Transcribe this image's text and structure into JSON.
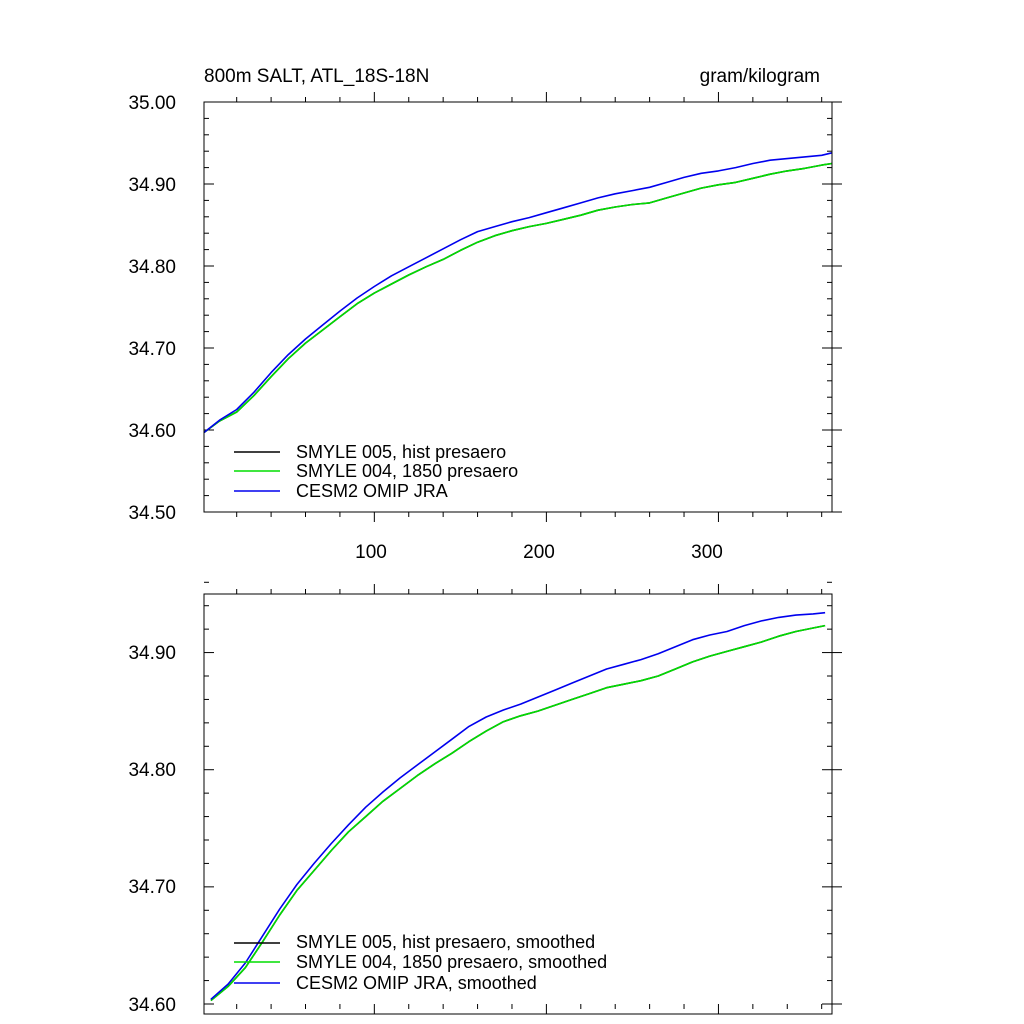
{
  "chart_data": [
    {
      "type": "line",
      "title": "800m SALT, ATL_18S-18N",
      "units": "gram/kilogram",
      "xlim": [
        1,
        366
      ],
      "ylim": [
        34.5,
        35.0
      ],
      "x_ticks": [
        100,
        200,
        300
      ],
      "x_tick_labels": [
        "100",
        "200",
        "300"
      ],
      "y_ticks": [
        34.5,
        34.6,
        34.7,
        34.8,
        34.9,
        35.0
      ],
      "y_tick_labels": [
        "34.50",
        "34.60",
        "34.70",
        "34.80",
        "34.90",
        "35.00"
      ],
      "legend_position": "bottom-left",
      "series": [
        {
          "name": "SMYLE 005, hist presaero",
          "color": "#000000",
          "x": [
            1,
            10,
            20,
            30,
            40,
            50,
            60,
            70,
            80,
            90,
            100,
            110,
            120,
            130,
            140,
            150,
            160,
            170,
            180,
            190,
            200,
            210,
            220,
            230,
            240,
            250,
            260,
            270,
            280,
            290,
            300,
            310,
            320,
            330,
            340,
            350,
            360,
            366
          ],
          "y": [
            34.597,
            34.611,
            34.622,
            34.642,
            34.665,
            34.687,
            34.706,
            34.722,
            34.738,
            34.754,
            34.767,
            34.778,
            34.789,
            34.799,
            34.808,
            34.819,
            34.829,
            34.837,
            34.843,
            34.848,
            34.852,
            34.857,
            34.862,
            34.868,
            34.872,
            34.875,
            34.877,
            34.883,
            34.889,
            34.895,
            34.899,
            34.902,
            34.907,
            34.912,
            34.916,
            34.919,
            34.923,
            34.925
          ]
        },
        {
          "name": "SMYLE 004, 1850 presaero",
          "color": "#00dd00",
          "x": [
            1,
            10,
            20,
            30,
            40,
            50,
            60,
            70,
            80,
            90,
            100,
            110,
            120,
            130,
            140,
            150,
            160,
            170,
            180,
            190,
            200,
            210,
            220,
            230,
            240,
            250,
            260,
            270,
            280,
            290,
            300,
            310,
            320,
            330,
            340,
            350,
            360,
            366
          ],
          "y": [
            34.597,
            34.611,
            34.622,
            34.642,
            34.665,
            34.687,
            34.706,
            34.722,
            34.738,
            34.754,
            34.767,
            34.778,
            34.789,
            34.799,
            34.808,
            34.819,
            34.829,
            34.837,
            34.843,
            34.848,
            34.852,
            34.857,
            34.862,
            34.868,
            34.872,
            34.875,
            34.877,
            34.883,
            34.889,
            34.895,
            34.899,
            34.902,
            34.907,
            34.912,
            34.916,
            34.919,
            34.923,
            34.925
          ]
        },
        {
          "name": "CESM2 OMIP JRA",
          "color": "#0000ee",
          "x": [
            1,
            10,
            20,
            30,
            40,
            50,
            60,
            70,
            80,
            90,
            100,
            110,
            120,
            130,
            140,
            150,
            160,
            170,
            180,
            190,
            200,
            210,
            220,
            230,
            240,
            250,
            260,
            270,
            280,
            290,
            300,
            310,
            320,
            330,
            340,
            350,
            360,
            366
          ],
          "y": [
            34.597,
            34.612,
            34.625,
            34.646,
            34.67,
            34.692,
            34.711,
            34.728,
            34.745,
            34.761,
            34.775,
            34.788,
            34.799,
            34.81,
            34.821,
            34.832,
            34.842,
            34.848,
            34.854,
            34.859,
            34.865,
            34.871,
            34.877,
            34.883,
            34.888,
            34.892,
            34.896,
            34.902,
            34.908,
            34.913,
            34.916,
            34.92,
            34.925,
            34.929,
            34.931,
            34.933,
            34.935,
            34.938
          ]
        }
      ]
    },
    {
      "type": "line",
      "xlim": [
        1,
        366
      ],
      "ylim": [
        34.6,
        34.95
      ],
      "x_ticks": [
        100,
        200,
        300
      ],
      "y_ticks": [
        34.6,
        34.7,
        34.8,
        34.9
      ],
      "y_tick_labels": [
        "34.60",
        "34.70",
        "34.80",
        "34.90"
      ],
      "legend_position": "bottom-left",
      "series": [
        {
          "name": "SMYLE 005, hist presaero, smoothed",
          "color": "#000000",
          "x": [
            5,
            15,
            25,
            35,
            45,
            55,
            65,
            75,
            85,
            95,
            105,
            115,
            125,
            135,
            145,
            155,
            165,
            175,
            185,
            195,
            205,
            215,
            225,
            235,
            245,
            255,
            265,
            275,
            285,
            295,
            305,
            315,
            325,
            335,
            345,
            355,
            362
          ],
          "y": [
            34.603,
            34.615,
            34.631,
            34.653,
            34.676,
            34.697,
            34.714,
            34.731,
            34.747,
            34.76,
            34.773,
            34.784,
            34.795,
            34.805,
            34.814,
            34.824,
            34.833,
            34.841,
            34.846,
            34.85,
            34.855,
            34.86,
            34.865,
            34.87,
            34.873,
            34.876,
            34.88,
            34.886,
            34.892,
            34.897,
            34.901,
            34.905,
            34.909,
            34.914,
            34.918,
            34.921,
            34.923
          ]
        },
        {
          "name": "SMYLE 004, 1850 presaero, smoothed",
          "color": "#00dd00",
          "x": [
            5,
            15,
            25,
            35,
            45,
            55,
            65,
            75,
            85,
            95,
            105,
            115,
            125,
            135,
            145,
            155,
            165,
            175,
            185,
            195,
            205,
            215,
            225,
            235,
            245,
            255,
            265,
            275,
            285,
            295,
            305,
            315,
            325,
            335,
            345,
            355,
            362
          ],
          "y": [
            34.603,
            34.615,
            34.631,
            34.653,
            34.676,
            34.697,
            34.714,
            34.731,
            34.747,
            34.76,
            34.773,
            34.784,
            34.795,
            34.805,
            34.814,
            34.824,
            34.833,
            34.841,
            34.846,
            34.85,
            34.855,
            34.86,
            34.865,
            34.87,
            34.873,
            34.876,
            34.88,
            34.886,
            34.892,
            34.897,
            34.901,
            34.905,
            34.909,
            34.914,
            34.918,
            34.921,
            34.923
          ]
        },
        {
          "name": "CESM2 OMIP JRA, smoothed",
          "color": "#0000ee",
          "x": [
            5,
            15,
            25,
            35,
            45,
            55,
            65,
            75,
            85,
            95,
            105,
            115,
            125,
            135,
            145,
            155,
            165,
            175,
            185,
            195,
            205,
            215,
            225,
            235,
            245,
            255,
            265,
            275,
            285,
            295,
            305,
            315,
            325,
            335,
            345,
            355,
            362
          ],
          "y": [
            34.604,
            34.617,
            34.635,
            34.658,
            34.681,
            34.702,
            34.72,
            34.737,
            34.753,
            34.768,
            34.781,
            34.793,
            34.804,
            34.815,
            34.826,
            34.837,
            34.845,
            34.851,
            34.856,
            34.862,
            34.868,
            34.874,
            34.88,
            34.886,
            34.89,
            34.894,
            34.899,
            34.905,
            34.911,
            34.915,
            34.918,
            34.923,
            34.927,
            34.93,
            34.932,
            34.933,
            34.934
          ]
        }
      ]
    }
  ]
}
